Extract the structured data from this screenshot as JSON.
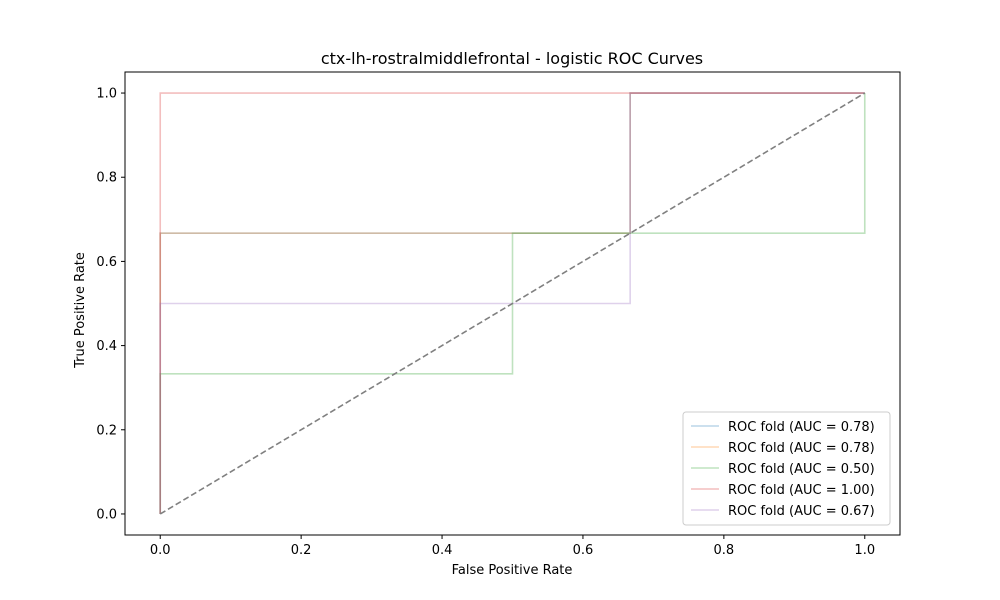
{
  "chart_data": {
    "type": "line",
    "title": "ctx-lh-rostralmiddlefrontal - logistic ROC Curves",
    "xlabel": "False Positive Rate",
    "ylabel": "True Positive Rate",
    "xlim": [
      -0.05,
      1.05
    ],
    "ylim": [
      -0.05,
      1.05
    ],
    "xticks": [
      0.0,
      0.2,
      0.4,
      0.6,
      0.8,
      1.0
    ],
    "yticks": [
      0.0,
      0.2,
      0.4,
      0.6,
      0.8,
      1.0
    ],
    "xtick_labels": [
      "0.0",
      "0.2",
      "0.4",
      "0.6",
      "0.8",
      "1.0"
    ],
    "ytick_labels": [
      "0.0",
      "0.2",
      "0.4",
      "0.6",
      "0.8",
      "1.0"
    ],
    "grid": false,
    "legend_position": "lower-right",
    "series": [
      {
        "name": "ROC fold (AUC = 0.78)",
        "color": "#1f77b4",
        "opacity": 0.3,
        "x": [
          0.0,
          0.0,
          0.0,
          0.667,
          0.667,
          1.0
        ],
        "y": [
          0.0,
          0.0,
          0.667,
          0.667,
          1.0,
          1.0
        ]
      },
      {
        "name": "ROC fold (AUC = 0.78)",
        "color": "#ff7f0e",
        "opacity": 0.3,
        "x": [
          0.0,
          0.0,
          0.0,
          0.667,
          0.667,
          1.0
        ],
        "y": [
          0.0,
          0.0,
          0.667,
          0.667,
          1.0,
          1.0
        ]
      },
      {
        "name": "ROC fold (AUC = 0.50)",
        "color": "#2ca02c",
        "opacity": 0.3,
        "x": [
          0.0,
          0.0,
          0.0,
          0.5,
          0.5,
          1.0,
          1.0
        ],
        "y": [
          0.0,
          0.0,
          0.333,
          0.333,
          0.667,
          0.667,
          1.0
        ]
      },
      {
        "name": "ROC fold (AUC = 1.00)",
        "color": "#d62728",
        "opacity": 0.3,
        "x": [
          0.0,
          0.0,
          0.0,
          1.0
        ],
        "y": [
          0.0,
          0.0,
          1.0,
          1.0
        ]
      },
      {
        "name": "ROC fold (AUC = 0.67)",
        "color": "#9467bd",
        "opacity": 0.3,
        "x": [
          0.0,
          0.0,
          0.0,
          0.667,
          0.667,
          1.0
        ],
        "y": [
          0.0,
          0.0,
          0.5,
          0.5,
          1.0,
          1.0
        ]
      }
    ],
    "reference_line": {
      "x": [
        0.0,
        1.0
      ],
      "y": [
        0.0,
        1.0
      ],
      "color": "#808080",
      "style": "dashed"
    }
  }
}
